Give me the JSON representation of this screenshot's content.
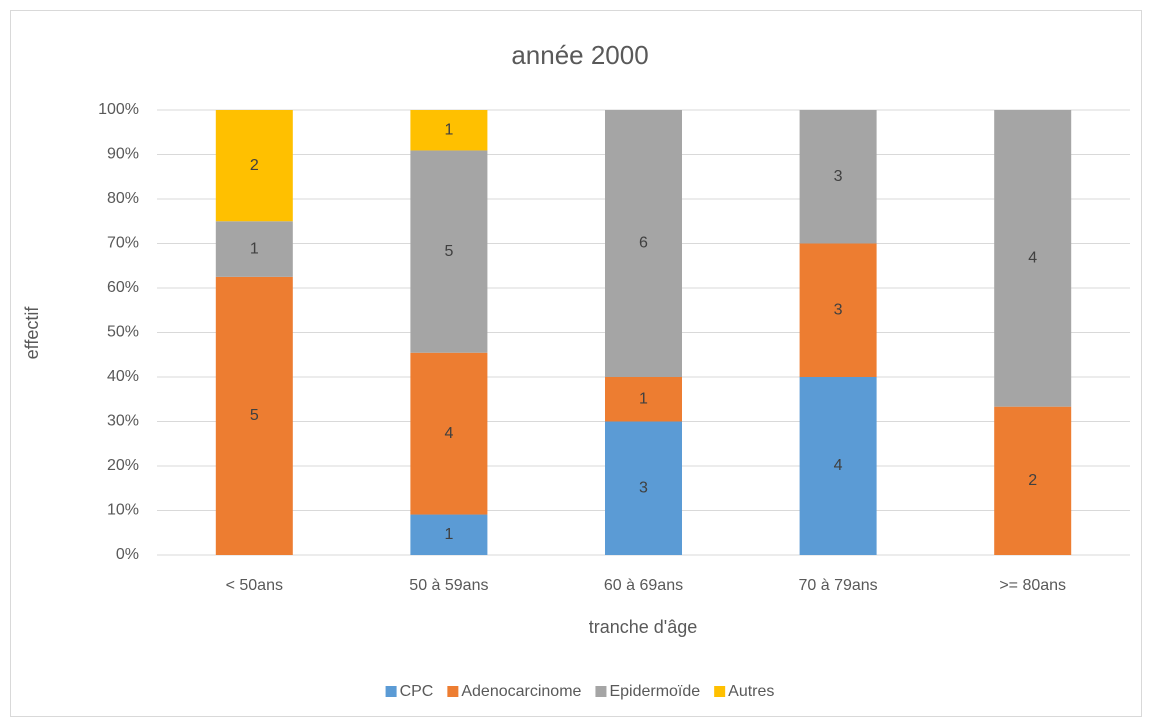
{
  "chart_data": {
    "type": "bar",
    "stacking": "percent",
    "title": "année 2000",
    "x_label": "tranche d'âge",
    "y_label": "effectif",
    "categories": [
      "< 50ans",
      "50 à 59ans",
      "60 à 69ans",
      "70 à 79ans",
      ">= 80ans"
    ],
    "series": [
      {
        "name": "CPC",
        "color": "#5b9bd5",
        "values": [
          0,
          1,
          3,
          4,
          0
        ]
      },
      {
        "name": "Adenocarcinome",
        "color": "#ed7d31",
        "values": [
          5,
          4,
          1,
          3,
          2
        ]
      },
      {
        "name": "Epidermoïde",
        "color": "#a5a5a5",
        "values": [
          1,
          5,
          6,
          3,
          4
        ]
      },
      {
        "name": "Autres",
        "color": "#ffc000",
        "values": [
          2,
          1,
          0,
          0,
          0
        ]
      }
    ],
    "ylim": [
      0,
      100
    ],
    "yticks": [
      {
        "value": 0,
        "label": "0%"
      },
      {
        "value": 10,
        "label": "10%"
      },
      {
        "value": 20,
        "label": "20%"
      },
      {
        "value": 30,
        "label": "30%"
      },
      {
        "value": 40,
        "label": "40%"
      },
      {
        "value": 50,
        "label": "50%"
      },
      {
        "value": 60,
        "label": "60%"
      },
      {
        "value": 70,
        "label": "70%"
      },
      {
        "value": 80,
        "label": "80%"
      },
      {
        "value": 90,
        "label": "90%"
      },
      {
        "value": 100,
        "label": "100%"
      }
    ],
    "grid": true,
    "legend": "bottom"
  }
}
